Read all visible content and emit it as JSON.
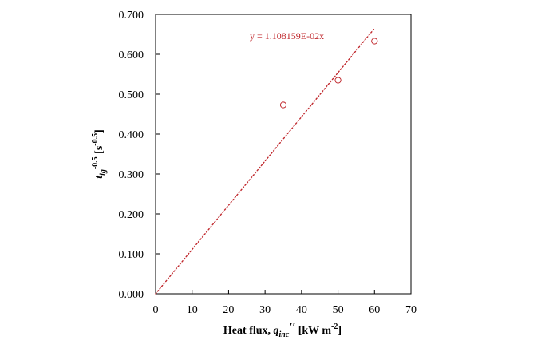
{
  "chart_data": {
    "type": "scatter",
    "x_title": {
      "prefix": "Heat flux, ",
      "sym": "q",
      "sub": "inc",
      "primes": "′′",
      "unit_pre": " [kW m",
      "unit_exp": "-2",
      "unit_post": "]"
    },
    "y_title": {
      "sym": "t",
      "sub": "ig",
      "exp": "-0.5",
      "unit_pre": " [s",
      "unit_exp": "-0.5",
      "unit_post": "]"
    },
    "x_ticks": [
      "0",
      "10",
      "20",
      "30",
      "40",
      "50",
      "60",
      "70"
    ],
    "y_ticks": [
      "0.000",
      "0.100",
      "0.200",
      "0.300",
      "0.400",
      "0.500",
      "0.600",
      "0.700"
    ],
    "xlim": [
      0,
      70
    ],
    "ylim": [
      0,
      0.7
    ],
    "series": [
      {
        "x": [
          35,
          50,
          60
        ],
        "y": [
          0.473,
          0.535,
          0.633
        ],
        "marker": "open-circle",
        "color": "#c0282d"
      }
    ],
    "trendline": {
      "slope": 0.01108159,
      "x_range": [
        0,
        60
      ],
      "style": "dotted",
      "color": "#c0282d",
      "label": "y = 1.108159E-02x"
    },
    "grid": false
  }
}
